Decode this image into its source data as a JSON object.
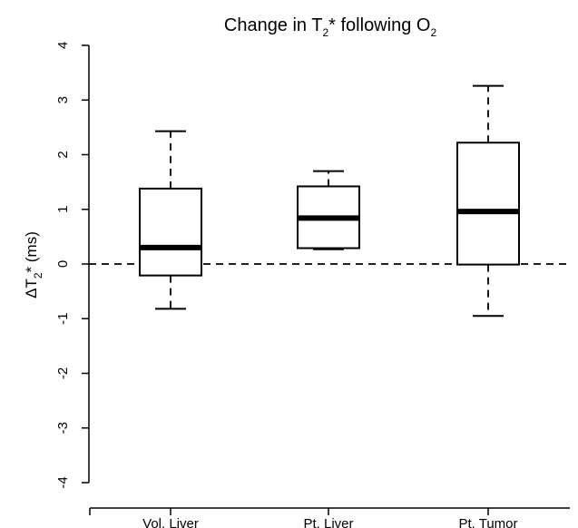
{
  "chart_data": {
    "type": "box",
    "title": {
      "text": "Change in T",
      "sub1": "2",
      "mid": "* following O",
      "sub2": "2"
    },
    "ylabel": {
      "prefix": "ΔT",
      "sub": "2",
      "suffix": "* (ms)"
    },
    "xlabel": "",
    "categories": [
      "Vol. Liver",
      "Pt. Liver",
      "Pt. Tumor"
    ],
    "yticks": [
      "-4",
      "-3",
      "-2",
      "-1",
      "0",
      "1",
      "2",
      "3",
      "4"
    ],
    "ylim": [
      -4,
      4
    ],
    "reference_line": 0,
    "boxes": [
      {
        "whisker_low": -0.82,
        "q1": -0.21,
        "median": 0.3,
        "q3": 1.38,
        "whisker_high": 2.43
      },
      {
        "whisker_low": 0.27,
        "q1": 0.29,
        "median": 0.84,
        "q3": 1.42,
        "whisker_high": 1.7
      },
      {
        "whisker_low": -0.95,
        "q1": -0.01,
        "median": 0.96,
        "q3": 2.22,
        "whisker_high": 3.26
      }
    ]
  }
}
